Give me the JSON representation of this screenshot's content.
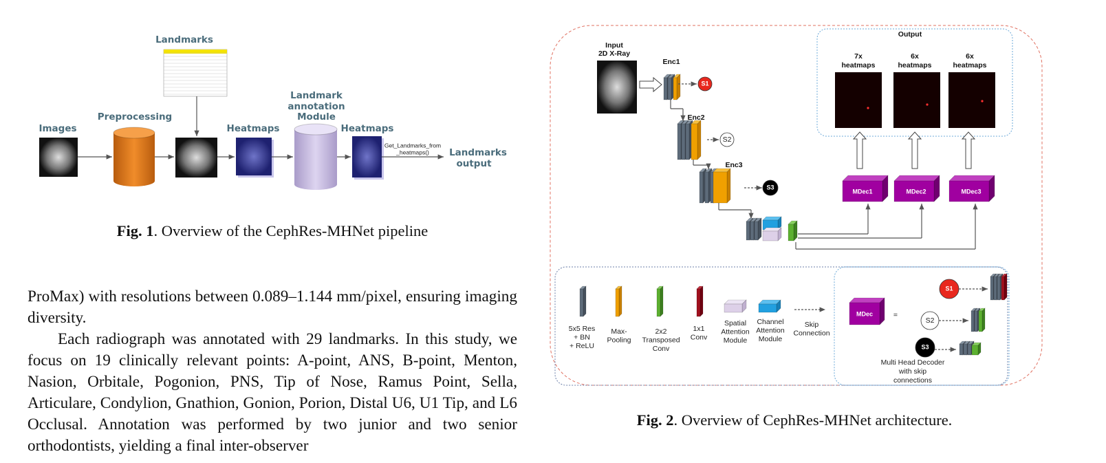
{
  "figure1": {
    "landmarks_table_title": "Landmarks",
    "images": "Images",
    "preprocessing": "Preprocessing",
    "heatmaps": [
      "Heatmaps",
      "Heatmaps"
    ],
    "annotation_module": [
      "Landmark",
      "annotation",
      "Module"
    ],
    "function_call": [
      "Get_Landmarks_from",
      "_heatmaps()"
    ],
    "output": [
      "Landmarks",
      "output"
    ],
    "caption": {
      "label": "Fig. 1",
      "text": ". Overview of the CephRes-MHNet pipeline"
    }
  },
  "body": {
    "paragraphs": [
      "ProMax) with resolutions between 0.089–1.144 mm/pixel, ensuring imaging diversity.",
      "Each radiograph was annotated with 29 landmarks. In this study, we focus on 19 clinically relevant points: A-point, ANS, B-point, Menton, Nasion, Orbitale, Pogonion, PNS, Tip of Nose, Ramus Point, Sella, Articulare, Condylion, Gnathion, Gonion, Porion, Distal U6, U1 Tip, and L6 Occlusal. Annotation was performed by two junior and two senior orthodontists, yielding a final inter-observer"
    ]
  },
  "figure2": {
    "input": [
      "Input",
      "2D X-Ray"
    ],
    "encoders": [
      "Enc1",
      "Enc2",
      "Enc3"
    ],
    "skips": [
      "S1",
      "S2",
      "S3"
    ],
    "output_title": "Output",
    "heatmap_groups": [
      [
        "7x",
        "heatmaps"
      ],
      [
        "6x",
        "heatmaps"
      ],
      [
        "6x",
        "heatmaps"
      ]
    ],
    "decoders": [
      "MDec1",
      "MDec2",
      "MDec3"
    ],
    "legend": [
      [
        "5x5 Res",
        "+ BN",
        "+ ReLU"
      ],
      [
        "Max-",
        "Pooling"
      ],
      [
        "2x2",
        "Transposed",
        "Conv"
      ],
      [
        "1x1",
        "Conv"
      ],
      [
        "Spatial",
        "Attention",
        "Module"
      ],
      [
        "Channel",
        "Attention",
        "Module"
      ],
      [
        "Skip",
        "Connection"
      ]
    ],
    "decoder_detail": {
      "block": "MDec",
      "equals": "=",
      "skips": [
        "S1",
        "S2",
        "S3"
      ],
      "caption": [
        "Multi Head Decoder",
        "with skip",
        "connections"
      ]
    },
    "caption": {
      "label": "Fig. 2",
      "text": ". Overview of CephRes-MHNet architecture."
    }
  }
}
